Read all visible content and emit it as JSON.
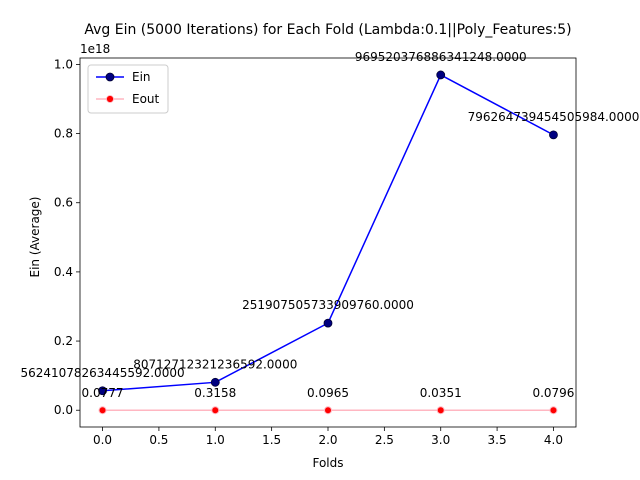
{
  "chart_data": {
    "type": "line",
    "title": "Avg Ein (5000 Iterations) for Each Fold (Lambda:0.1||Poly_Features:5)",
    "xlabel": "Folds",
    "ylabel": "Ein (Average)",
    "y_offset_label": "1e18",
    "xlim": [
      -0.2,
      4.2
    ],
    "ylim": [
      -0.0485,
      1.0185
    ],
    "y_scale": 1e+18,
    "x_ticks": [
      0.0,
      0.5,
      1.0,
      1.5,
      2.0,
      2.5,
      3.0,
      3.5,
      4.0
    ],
    "x_tick_labels": [
      "0.0",
      "0.5",
      "1.0",
      "1.5",
      "2.0",
      "2.5",
      "3.0",
      "3.5",
      "4.0"
    ],
    "y_ticks": [
      0.0,
      0.2,
      0.4,
      0.6,
      0.8,
      1.0
    ],
    "y_tick_labels": [
      "0.0",
      "0.2",
      "0.4",
      "0.6",
      "0.8",
      "1.0"
    ],
    "grid": false,
    "legend_position": "upper-left",
    "x": [
      0,
      1,
      2,
      3,
      4
    ],
    "series": [
      {
        "name": "Ein",
        "color": "#0000ff",
        "marker_color": "#000080",
        "values_scaled": [
          0.05624,
          0.08071,
          0.25191,
          0.96952,
          0.79626
        ],
        "data_labels": [
          "56241078263445592.0000",
          "80712712321236592.0000",
          "251907505733909760.0000",
          "969520376886341248.0000",
          "796264739454505984.0000"
        ]
      },
      {
        "name": "Eout",
        "color": "#ffb6c1",
        "marker_color": "#ff0000",
        "values": [
          0.0777,
          0.3158,
          0.0965,
          0.0351,
          0.0796
        ],
        "data_labels": [
          "0.0777",
          "0.3158",
          "0.0965",
          "0.0351",
          "0.0796"
        ]
      }
    ]
  }
}
